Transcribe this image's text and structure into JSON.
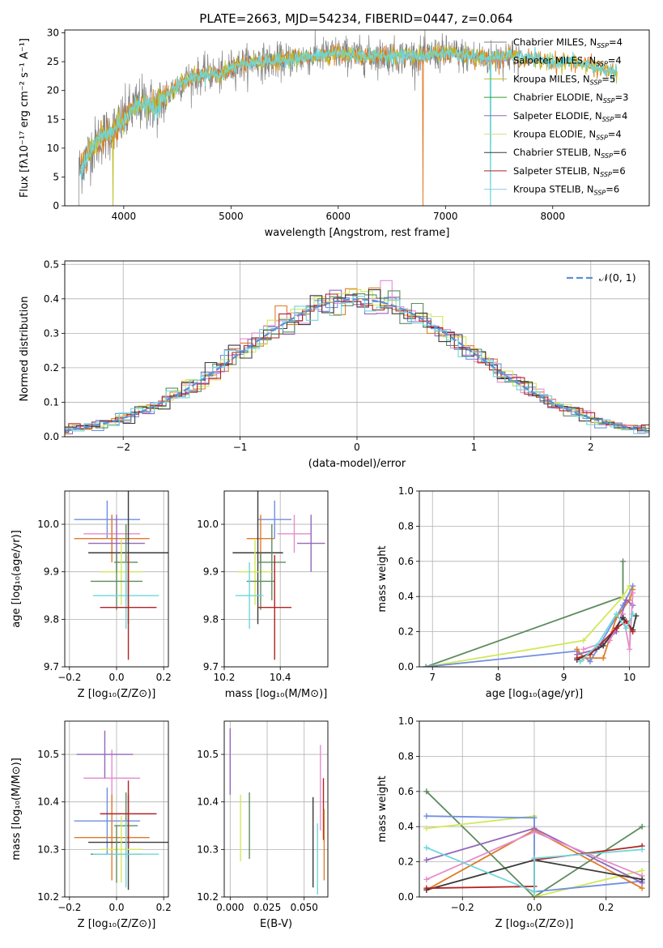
{
  "figure_title": "PLATE=2663, MJD=54234, FIBERID=0447, z=0.064",
  "colors": {
    "chabrier_miles": "#7f7f7f",
    "salpeter_miles": "#e377c2",
    "kroupa_miles": "#bcbd22",
    "chabrier_elodie": "#2ca02c",
    "salpeter_elodie": "#9467bd",
    "kroupa_elodie": "#dbdb8d",
    "chabrier_stelib": "#3a3a3a",
    "salpeter_stelib": "#b22222",
    "kroupa_stelib": "#87ceeb",
    "normal_curve": "#5a8fd6",
    "grid": "#b0b0b0",
    "model_overlay": "#6fd6d9",
    "model_orange": "#e07b28"
  },
  "chart_data": [
    {
      "id": "spectrum",
      "type": "line",
      "title": "PLATE=2663, MJD=54234, FIBERID=0447, z=0.064",
      "xlabel": "wavelength [Angstrom, rest frame]",
      "ylabel": "Flux [fλ10⁻¹⁷ erg cm⁻² s⁻¹ A⁻¹]",
      "xlim": [
        3450,
        8900
      ],
      "ylim": [
        0,
        30.5
      ],
      "xticks": [
        4000,
        5000,
        6000,
        7000,
        8000
      ],
      "yticks": [
        0,
        5,
        10,
        15,
        20,
        25,
        30
      ],
      "grid": false,
      "legend_position": "top-right",
      "series": [
        {
          "name": "Chabrier MILES, N_SSP=4",
          "label_main": "Chabrier MILES, N",
          "label_sub": "SSP",
          "label_tail": "=4",
          "color": "#7f7f7f"
        },
        {
          "name": "Salpeter MILES, N_SSP=4",
          "label_main": "Salpeter MILES, N",
          "label_sub": "SSP",
          "label_tail": "=4",
          "color": "#e377c2"
        },
        {
          "name": "Kroupa MILES, N_SSP=5",
          "label_main": "Kroupa MILES, N",
          "label_sub": "SSP",
          "label_tail": "=5",
          "color": "#bcbd22"
        },
        {
          "name": "Chabrier ELODIE, N_SSP=3",
          "label_main": "Chabrier ELODIE, N",
          "label_sub": "SSP",
          "label_tail": "=3",
          "color": "#2ca02c"
        },
        {
          "name": "Salpeter ELODIE, N_SSP=4",
          "label_main": "Salpeter ELODIE, N",
          "label_sub": "SSP",
          "label_tail": "=4",
          "color": "#9467bd"
        },
        {
          "name": "Kroupa ELODIE, N_SSP=4",
          "label_main": "Kroupa ELODIE, N",
          "label_sub": "SSP",
          "label_tail": "=4",
          "color": "#dbdb8d"
        },
        {
          "name": "Chabrier STELIB, N_SSP=6",
          "label_main": "Chabrier STELIB, N",
          "label_sub": "SSP",
          "label_tail": "=6",
          "color": "#3a3a3a"
        },
        {
          "name": "Salpeter STELIB, N_SSP=6",
          "label_main": "Salpeter STELIB, N",
          "label_sub": "SSP",
          "label_tail": "=6",
          "color": "#b22222"
        },
        {
          "name": "Kroupa STELIB, N_SSP=6",
          "label_main": "Kroupa STELIB, N",
          "label_sub": "SSP",
          "label_tail": "=6",
          "color": "#87ceeb"
        }
      ],
      "spectrum_trend": {
        "x": [
          3580,
          3700,
          3800,
          3900,
          4000,
          4100,
          4200,
          4300,
          4400,
          4500,
          4600,
          4700,
          4800,
          4900,
          5000,
          5200,
          5400,
          5600,
          5800,
          6000,
          6200,
          6400,
          6600,
          6800,
          7000,
          7200,
          7400,
          7600,
          7800,
          8000,
          8200,
          8400,
          8600
        ],
        "y": [
          6,
          10,
          12,
          13,
          15,
          17,
          18,
          17,
          19,
          21,
          22,
          22.5,
          23,
          22.5,
          24,
          25,
          25,
          25.5,
          26,
          26.5,
          26,
          26,
          26,
          26,
          26.5,
          26,
          25.5,
          26,
          25.5,
          25,
          25,
          24,
          23
        ]
      }
    },
    {
      "id": "residual-histogram",
      "type": "step",
      "xlabel": "(data-model)/error",
      "ylabel": "Normed distribution",
      "xlim": [
        -2.5,
        2.5
      ],
      "ylim": [
        0,
        0.51
      ],
      "xticks": [
        -2,
        -1,
        0,
        1,
        2
      ],
      "xtick_labels": [
        "−2",
        "−1",
        "0",
        "1",
        "2"
      ],
      "yticks": [
        0.0,
        0.1,
        0.2,
        0.3,
        0.4,
        0.5
      ],
      "grid": true,
      "legend_position": "top-right",
      "legend_label": "𝒩(0, 1)",
      "normal_curve": {
        "mean": 0,
        "sigma": 1
      }
    },
    {
      "id": "age-vs-metallicity",
      "type": "errorbar",
      "xlabel": "Z [log₁₀(Z/Z⊙)]",
      "ylabel": "age  [log₁₀(age/yr)]",
      "xlim": [
        -0.22,
        0.22
      ],
      "ylim": [
        9.7,
        10.07
      ],
      "xticks": [
        -0.2,
        0.0,
        0.2
      ],
      "xtick_labels": [
        "−0.2",
        "0.0",
        "0.2"
      ],
      "yticks": [
        9.7,
        9.8,
        9.9,
        10.0
      ],
      "grid": true,
      "points": [
        {
          "x": -0.04,
          "xerr": 0.14,
          "y": 10.01,
          "yerr": 0.04,
          "color": "#6f8fe0"
        },
        {
          "x": -0.02,
          "xerr": 0.12,
          "y": 9.98,
          "yerr": 0.04,
          "color": "#e58dcc"
        },
        {
          "x": -0.02,
          "xerr": 0.16,
          "y": 9.97,
          "yerr": 0.05,
          "color": "#e07b28"
        },
        {
          "x": 0.0,
          "xerr": 0.12,
          "y": 9.96,
          "yerr": 0.06,
          "color": "#9467bd"
        },
        {
          "x": 0.05,
          "xerr": 0.17,
          "y": 9.94,
          "yerr": 0.15,
          "color": "#3a3a3a"
        },
        {
          "x": 0.04,
          "xerr": 0.05,
          "y": 9.92,
          "yerr": 0.08,
          "color": "#5e8c5e"
        },
        {
          "x": 0.02,
          "xerr": 0.09,
          "y": 9.9,
          "yerr": 0.07,
          "color": "#d2e85a"
        },
        {
          "x": 0.0,
          "xerr": 0.11,
          "y": 9.88,
          "yerr": 0.06,
          "color": "#5e8c5e"
        },
        {
          "x": 0.04,
          "xerr": 0.14,
          "y": 9.85,
          "yerr": 0.07,
          "color": "#6fd6d9"
        },
        {
          "x": 0.05,
          "xerr": 0.12,
          "y": 9.825,
          "yerr": 0.11,
          "color": "#b22222"
        }
      ]
    },
    {
      "id": "age-vs-mass",
      "type": "errorbar",
      "xlabel": "mass [log₁₀(M/M⊙)]",
      "ylabel": "",
      "xlim": [
        10.2,
        10.57
      ],
      "ylim": [
        9.7,
        10.07
      ],
      "xticks": [
        10.2,
        10.4
      ],
      "xtick_labels": [
        "10.2",
        "10.4"
      ],
      "yticks": [
        9.7,
        9.8,
        9.9,
        10.0
      ],
      "grid": true,
      "points": [
        {
          "x": 10.38,
          "xerr": 0.06,
          "y": 10.01,
          "yerr": 0.04,
          "color": "#6f8fe0"
        },
        {
          "x": 10.45,
          "xerr": 0.06,
          "y": 9.98,
          "yerr": 0.04,
          "color": "#e58dcc"
        },
        {
          "x": 10.33,
          "xerr": 0.05,
          "y": 9.97,
          "yerr": 0.05,
          "color": "#e07b28"
        },
        {
          "x": 10.51,
          "xerr": 0.05,
          "y": 9.96,
          "yerr": 0.06,
          "color": "#9467bd"
        },
        {
          "x": 10.32,
          "xerr": 0.09,
          "y": 9.94,
          "yerr": 0.15,
          "color": "#3a3a3a"
        },
        {
          "x": 10.37,
          "xerr": 0.05,
          "y": 9.92,
          "yerr": 0.08,
          "color": "#5e8c5e"
        },
        {
          "x": 10.31,
          "xerr": 0.06,
          "y": 9.9,
          "yerr": 0.07,
          "color": "#d2e85a"
        },
        {
          "x": 10.33,
          "xerr": 0.05,
          "y": 9.88,
          "yerr": 0.06,
          "color": "#5e8c5e"
        },
        {
          "x": 10.29,
          "xerr": 0.05,
          "y": 9.85,
          "yerr": 0.07,
          "color": "#6fd6d9"
        },
        {
          "x": 10.38,
          "xerr": 0.06,
          "y": 9.825,
          "yerr": 0.11,
          "color": "#b22222"
        }
      ]
    },
    {
      "id": "massweight-vs-age",
      "type": "line",
      "xlabel": "age  [log₁₀(age/yr)]",
      "ylabel": "mass weight",
      "xlim": [
        6.8,
        10.3
      ],
      "ylim": [
        0,
        1.0
      ],
      "xticks": [
        7,
        8,
        9,
        10
      ],
      "yticks": [
        0.0,
        0.2,
        0.4,
        0.6,
        0.8,
        1.0
      ],
      "grid": true,
      "series": [
        {
          "color": "#5e8c5e",
          "x": [
            6.9,
            9.9,
            9.9
          ],
          "y": [
            0.0,
            0.4,
            0.6
          ]
        },
        {
          "color": "#d2e85a",
          "x": [
            6.9,
            9.3,
            9.9,
            10.0
          ],
          "y": [
            0.0,
            0.15,
            0.4,
            0.46
          ]
        },
        {
          "color": "#6f8fe0",
          "x": [
            6.9,
            9.2,
            9.4,
            9.9,
            10.05
          ],
          "y": [
            0.0,
            0.09,
            0.03,
            0.35,
            0.46
          ]
        },
        {
          "color": "#e07b28",
          "x": [
            9.2,
            9.3,
            9.6,
            9.8,
            10.0,
            10.05
          ],
          "y": [
            0.1,
            0.05,
            0.05,
            0.28,
            0.38,
            0.44
          ]
        },
        {
          "color": "#9467bd",
          "x": [
            9.2,
            9.5,
            9.8,
            9.95,
            10.05
          ],
          "y": [
            0.07,
            0.1,
            0.2,
            0.38,
            0.35
          ]
        },
        {
          "color": "#e58dcc",
          "x": [
            9.3,
            9.7,
            9.9,
            10.0,
            10.05
          ],
          "y": [
            0.1,
            0.15,
            0.3,
            0.1,
            0.42
          ]
        },
        {
          "color": "#3a3a3a",
          "x": [
            9.2,
            9.6,
            9.9,
            10.05,
            10.1
          ],
          "y": [
            0.04,
            0.12,
            0.28,
            0.21,
            0.29
          ]
        },
        {
          "color": "#b22222",
          "x": [
            9.2,
            9.4,
            9.8,
            9.95,
            10.05
          ],
          "y": [
            0.05,
            0.07,
            0.22,
            0.26,
            0.2
          ]
        },
        {
          "color": "#6fd6d9",
          "x": [
            9.25,
            9.5,
            9.8,
            9.95,
            10.05
          ],
          "y": [
            0.03,
            0.12,
            0.3,
            0.22,
            0.3
          ]
        }
      ]
    },
    {
      "id": "mass-vs-metallicity",
      "type": "errorbar",
      "xlabel": "Z [log₁₀(Z/Z⊙)]",
      "ylabel": "mass [log₁₀(M/M⊙)]",
      "xlim": [
        -0.22,
        0.22
      ],
      "ylim": [
        10.2,
        10.57
      ],
      "xticks": [
        -0.2,
        0.0,
        0.2
      ],
      "xtick_labels": [
        "−0.2",
        "0.0",
        "0.2"
      ],
      "yticks": [
        10.2,
        10.3,
        10.4,
        10.5
      ],
      "grid": true,
      "points": [
        {
          "x": -0.04,
          "xerr": 0.14,
          "y": 10.36,
          "yerr": 0.07,
          "color": "#6f8fe0"
        },
        {
          "x": -0.02,
          "xerr": 0.12,
          "y": 10.45,
          "yerr": 0.06,
          "color": "#e58dcc"
        },
        {
          "x": -0.02,
          "xerr": 0.16,
          "y": 10.325,
          "yerr": 0.09,
          "color": "#e07b28"
        },
        {
          "x": -0.05,
          "xerr": 0.12,
          "y": 10.5,
          "yerr": 0.05,
          "color": "#9467bd"
        },
        {
          "x": 0.05,
          "xerr": 0.17,
          "y": 10.315,
          "yerr": 0.1,
          "color": "#3a3a3a"
        },
        {
          "x": 0.04,
          "xerr": 0.05,
          "y": 10.35,
          "yerr": 0.07,
          "color": "#5e8c5e"
        },
        {
          "x": 0.02,
          "xerr": 0.09,
          "y": 10.3,
          "yerr": 0.07,
          "color": "#d2e85a"
        },
        {
          "x": 0.0,
          "xerr": 0.11,
          "y": 10.29,
          "yerr": 0.06,
          "color": "#5e8c5e"
        },
        {
          "x": 0.04,
          "xerr": 0.14,
          "y": 10.29,
          "yerr": 0.07,
          "color": "#6fd6d9"
        },
        {
          "x": 0.05,
          "xerr": 0.12,
          "y": 10.375,
          "yerr": 0.07,
          "color": "#b22222"
        }
      ]
    },
    {
      "id": "mass-vs-ebv",
      "type": "errorbar",
      "xlabel": "E(B-V)",
      "ylabel": "",
      "xlim": [
        -0.004,
        0.066
      ],
      "ylim": [
        10.2,
        10.57
      ],
      "xticks": [
        0.0,
        0.025,
        0.05
      ],
      "xtick_labels": [
        "0.000",
        "0.025",
        "0.050"
      ],
      "yticks": [
        10.2,
        10.3,
        10.4,
        10.5
      ],
      "grid": true,
      "points": [
        {
          "x": 0.0,
          "xerr": 0,
          "y": 10.485,
          "yerr": 0.07,
          "color": "#9467bd"
        },
        {
          "x": 0.007,
          "xerr": 0,
          "y": 10.345,
          "yerr": 0.07,
          "color": "#d2e85a"
        },
        {
          "x": 0.013,
          "xerr": 0,
          "y": 10.35,
          "yerr": 0.07,
          "color": "#5e8c5e"
        },
        {
          "x": 0.056,
          "xerr": 0,
          "y": 10.315,
          "yerr": 0.095,
          "color": "#3a3a3a"
        },
        {
          "x": 0.059,
          "xerr": 0,
          "y": 10.28,
          "yerr": 0.075,
          "color": "#6fd6d9"
        },
        {
          "x": 0.061,
          "xerr": 0,
          "y": 10.43,
          "yerr": 0.09,
          "color": "#e58dcc"
        },
        {
          "x": 0.063,
          "xerr": 0,
          "y": 10.385,
          "yerr": 0.065,
          "color": "#b22222"
        },
        {
          "x": 0.0635,
          "xerr": 0,
          "y": 10.31,
          "yerr": 0.075,
          "color": "#e07b28"
        }
      ]
    },
    {
      "id": "massweight-vs-metallicity",
      "type": "line",
      "xlabel": "Z [log₁₀(Z/Z⊙)]",
      "ylabel": "mass weight",
      "xlim": [
        -0.32,
        0.32
      ],
      "ylim": [
        0,
        1.0
      ],
      "xticks": [
        -0.2,
        0.0,
        0.2
      ],
      "xtick_labels": [
        "−0.2",
        "0.0",
        "0.2"
      ],
      "yticks": [
        0.0,
        0.2,
        0.4,
        0.6,
        0.8,
        1.0
      ],
      "grid": true,
      "series": [
        {
          "color": "#5e8c5e",
          "x": [
            -0.3,
            0.0,
            0.3
          ],
          "y": [
            0.6,
            0.0,
            0.4
          ]
        },
        {
          "color": "#d2e85a",
          "x": [
            -0.3,
            0.0,
            0.0,
            0.3
          ],
          "y": [
            0.39,
            0.46,
            0.0,
            0.15
          ]
        },
        {
          "color": "#6f8fe0",
          "x": [
            -0.3,
            0.0,
            0.0,
            0.3
          ],
          "y": [
            0.46,
            0.45,
            0.03,
            0.09
          ]
        },
        {
          "color": "#e07b28",
          "x": [
            -0.3,
            0.0,
            0.3
          ],
          "y": [
            0.04,
            0.38,
            0.05
          ]
        },
        {
          "color": "#9467bd",
          "x": [
            -0.3,
            0.0,
            0.3
          ],
          "y": [
            0.21,
            0.39,
            0.08
          ]
        },
        {
          "color": "#e58dcc",
          "x": [
            -0.3,
            0.0,
            0.3
          ],
          "y": [
            0.1,
            0.37,
            0.12
          ]
        },
        {
          "color": "#3a3a3a",
          "x": [
            -0.3,
            0.0,
            0.3
          ],
          "y": [
            0.04,
            0.21,
            0.1
          ]
        },
        {
          "color": "#b22222",
          "x": [
            -0.3,
            0.0,
            0.0,
            0.3
          ],
          "y": [
            0.05,
            0.06,
            0.21,
            0.29
          ]
        },
        {
          "color": "#6fd6d9",
          "x": [
            -0.3,
            0.0,
            0.0,
            0.3
          ],
          "y": [
            0.28,
            0.03,
            0.22,
            0.27
          ]
        }
      ]
    }
  ]
}
